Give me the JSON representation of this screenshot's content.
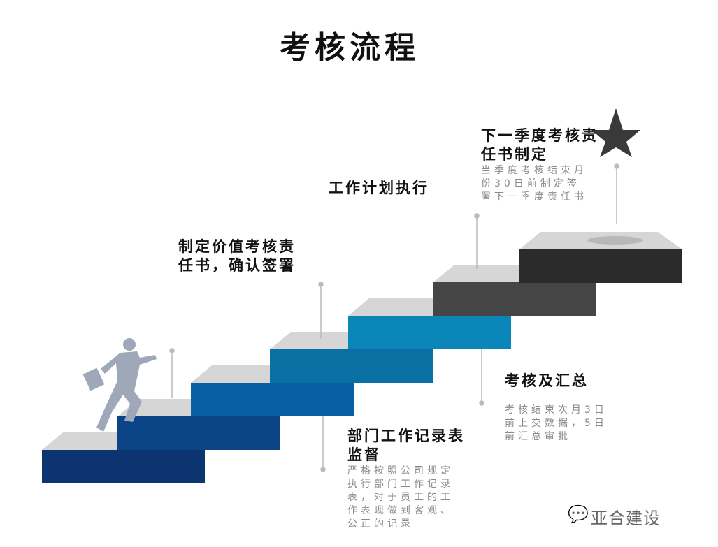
{
  "title": "考核流程",
  "steps": [
    {
      "heading": "制定价值考核责任书，确认签署",
      "color": "#0b3470"
    },
    {
      "heading": "部门工作记录表监督",
      "desc": "严格按照公司规定执行部门工作记录表，对于员工的工作表现做到客观、公正的记录",
      "color": "#0b4587"
    },
    {
      "heading": "工作计划执行",
      "color": "#0a5fa2"
    },
    {
      "heading": "考核及汇总",
      "desc": "考核结束次月3日前上交数据，5日前汇总审批",
      "color": "#0a70a4"
    },
    {
      "heading": "下一季度考核责任书制定",
      "desc": "当季度考核结束月份30日前制定签署下一季度责任书",
      "color": "#0a86b8"
    }
  ],
  "stair_colors": [
    "#0b3470",
    "#0b4587",
    "#0a5fa2",
    "#0a70a4",
    "#0a86b8",
    "#454545",
    "#2b2b2b"
  ],
  "top_color": "#d6d6d6",
  "goal_icon": "star-icon",
  "figure_icon": "running-businessman-icon",
  "watermark": {
    "icon": "wechat-icon",
    "text": "亚合建设"
  }
}
